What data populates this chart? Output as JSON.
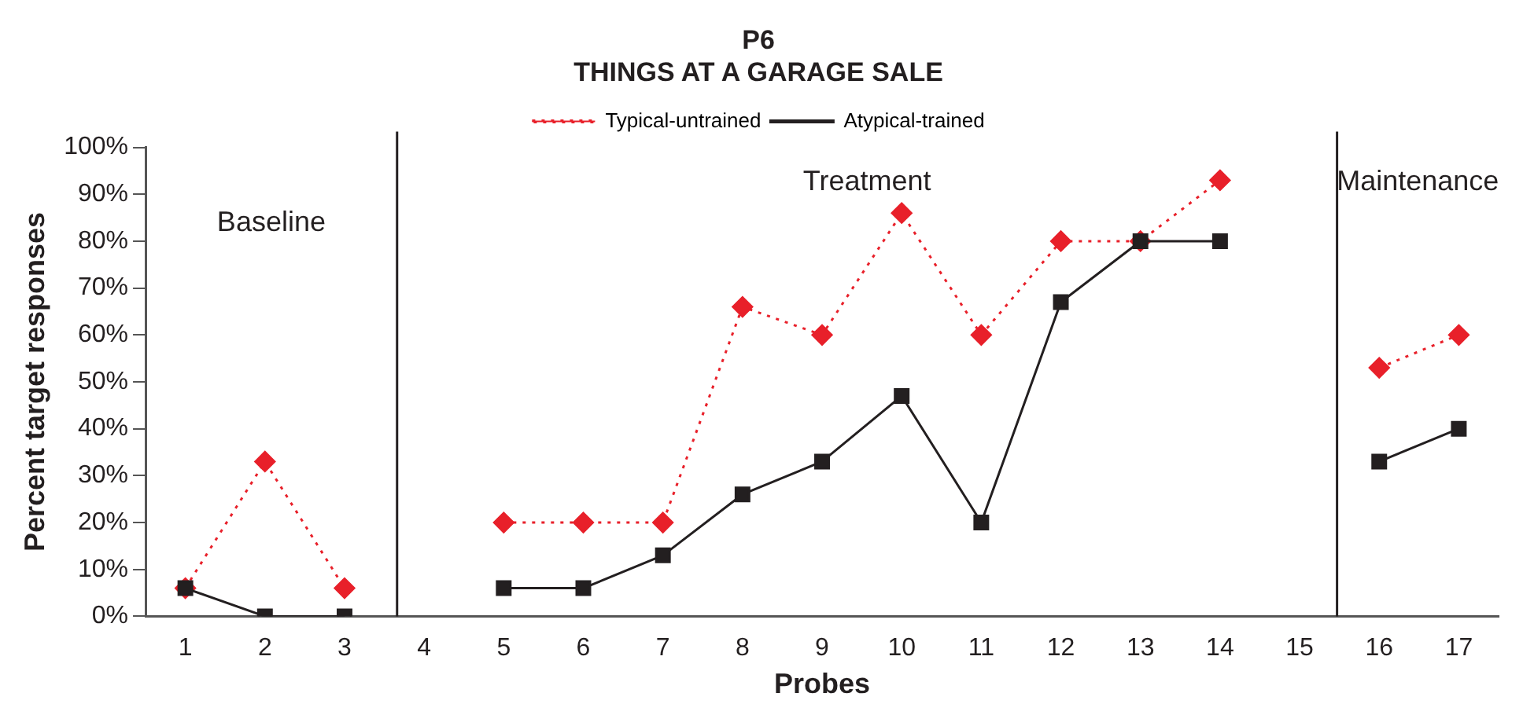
{
  "chart_data": {
    "type": "line",
    "title": "P6\nTHINGS AT A GARAGE SALE",
    "xlabel": "Probes",
    "ylabel": "Percent target responses",
    "x": [
      1,
      2,
      3,
      4,
      5,
      6,
      7,
      8,
      9,
      10,
      11,
      12,
      13,
      14,
      15,
      16,
      17
    ],
    "xlim": [
      0.5,
      17.5
    ],
    "xticks": [
      1,
      2,
      3,
      4,
      5,
      6,
      7,
      8,
      9,
      10,
      11,
      12,
      13,
      14,
      15,
      16,
      17
    ],
    "ylim": [
      0,
      100
    ],
    "yticks": [
      {
        "value": 0,
        "label": "0%"
      },
      {
        "value": 10,
        "label": "10%"
      },
      {
        "value": 20,
        "label": "20%"
      },
      {
        "value": 30,
        "label": "30%"
      },
      {
        "value": 40,
        "label": "40%"
      },
      {
        "value": 50,
        "label": "50%"
      },
      {
        "value": 60,
        "label": "60%"
      },
      {
        "value": 70,
        "label": "70%"
      },
      {
        "value": 80,
        "label": "80%"
      },
      {
        "value": 90,
        "label": "90%"
      },
      {
        "value": 100,
        "label": "100%"
      }
    ],
    "series": [
      {
        "name": "Typical-untrained",
        "color": "#e8202a",
        "marker": "diamond",
        "line_style": "dotted",
        "values": [
          6,
          33,
          6,
          null,
          20,
          20,
          20,
          66,
          60,
          86,
          60,
          80,
          80,
          93,
          null,
          53,
          60
        ]
      },
      {
        "name": "Atypical-trained",
        "color": "#231f20",
        "marker": "square",
        "line_style": "solid",
        "values": [
          6,
          0,
          0,
          null,
          6,
          6,
          13,
          26,
          33,
          47,
          20,
          67,
          80,
          80,
          null,
          33,
          40
        ]
      }
    ],
    "ref_lines": [
      {
        "axis": "x",
        "value": 3.66,
        "color": "#231f20"
      },
      {
        "axis": "x",
        "value": 15.47,
        "color": "#231f20"
      }
    ],
    "annotations": [
      "Baseline",
      "Treatment",
      "Maintenance"
    ],
    "grid": false,
    "legend": "top right"
  }
}
